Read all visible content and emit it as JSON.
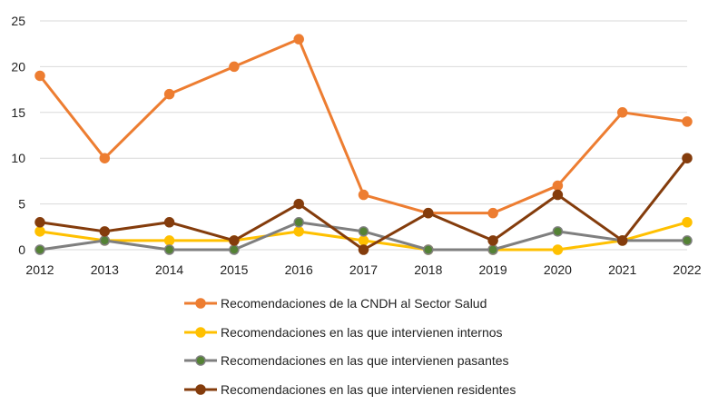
{
  "chart_data": {
    "type": "line",
    "title": "",
    "xlabel": "",
    "ylabel": "",
    "x": [
      "2012",
      "2013",
      "2014",
      "2015",
      "2016",
      "2017",
      "2018",
      "2019",
      "2020",
      "2021",
      "2022"
    ],
    "ylim": [
      0,
      25
    ],
    "yticks": [
      "0",
      "5",
      "10",
      "15",
      "20",
      "25"
    ],
    "grid": true,
    "legend_position": "bottom",
    "series": [
      {
        "name": "Recomendaciones de la CNDH al Sector Salud",
        "color": "#ED7D31",
        "marker": "#ED7D31",
        "values": [
          19,
          10,
          17,
          20,
          23,
          6,
          4,
          4,
          7,
          15,
          14
        ]
      },
      {
        "name": "Recomendaciones en las que intervienen internos",
        "color": "#FFC000",
        "marker": "#FFC000",
        "values": [
          2,
          1,
          1,
          1,
          2,
          1,
          0,
          0,
          0,
          1,
          3
        ]
      },
      {
        "name": "Recomendaciones en las que intervienen pasantes",
        "color": "#7F7F7F",
        "marker": "#548235",
        "values": [
          0,
          1,
          0,
          0,
          3,
          2,
          0,
          0,
          2,
          1,
          1
        ]
      },
      {
        "name": "Recomendaciones en las que intervienen residentes",
        "color": "#843C0C",
        "marker": "#843C0C",
        "values": [
          3,
          2,
          3,
          1,
          5,
          0,
          4,
          1,
          6,
          1,
          10
        ]
      }
    ]
  }
}
